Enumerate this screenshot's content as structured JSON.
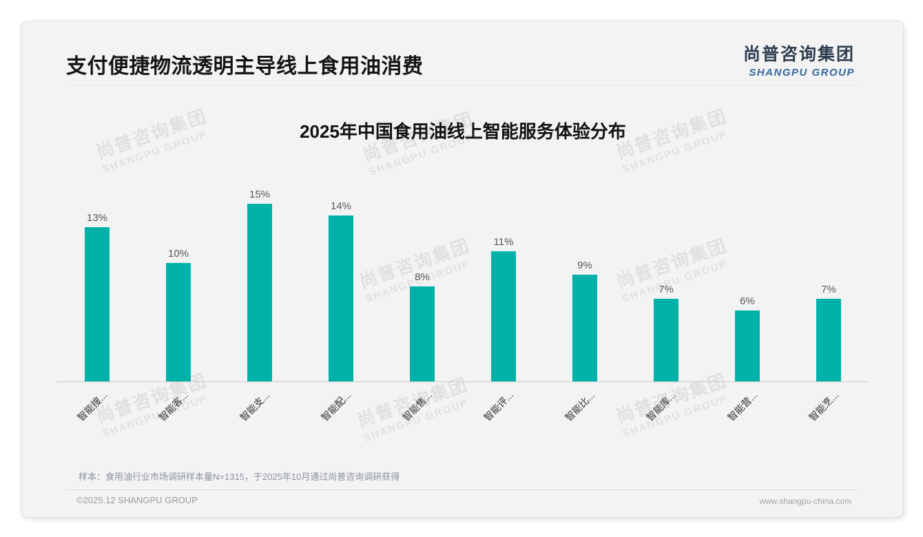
{
  "page": {
    "title": "支付便捷物流透明主导线上食用油消费",
    "logo": {
      "cn": "尚普咨询集团",
      "en": "SHANGPU GROUP"
    },
    "watermark": {
      "cn": "尚普咨询集团",
      "en": "SHANGPU GROUP"
    },
    "note": "样本：食用油行业市场调研样本量N=1315，于2025年10月通过尚普咨询调研获得",
    "footer": {
      "copyright": "©2025.12 SHANGPU GROUP",
      "website": "www.shangpu-china.com"
    }
  },
  "chart_data": {
    "type": "bar",
    "title": "2025年中国食用油线上智能服务体验分布",
    "categories": [
      "智能搜...",
      "智能客...",
      "智能支...",
      "智能配...",
      "智能售...",
      "智能评...",
      "智能比...",
      "智能库...",
      "智能营...",
      "智能烹..."
    ],
    "values": [
      13,
      10,
      15,
      14,
      8,
      11,
      9,
      7,
      6,
      7
    ],
    "unit": "%",
    "value_labels": [
      "13%",
      "10%",
      "15%",
      "14%",
      "8%",
      "11%",
      "9%",
      "7%",
      "6%",
      "7%"
    ],
    "bar_color": "#00B1A9",
    "value_label_color": "#575757",
    "x_label_color": "#333333",
    "axis_line_color": "#CBCBCB",
    "x_label_rotation": 45,
    "ylim": [
      0,
      16
    ],
    "grid": false,
    "legend": null
  }
}
